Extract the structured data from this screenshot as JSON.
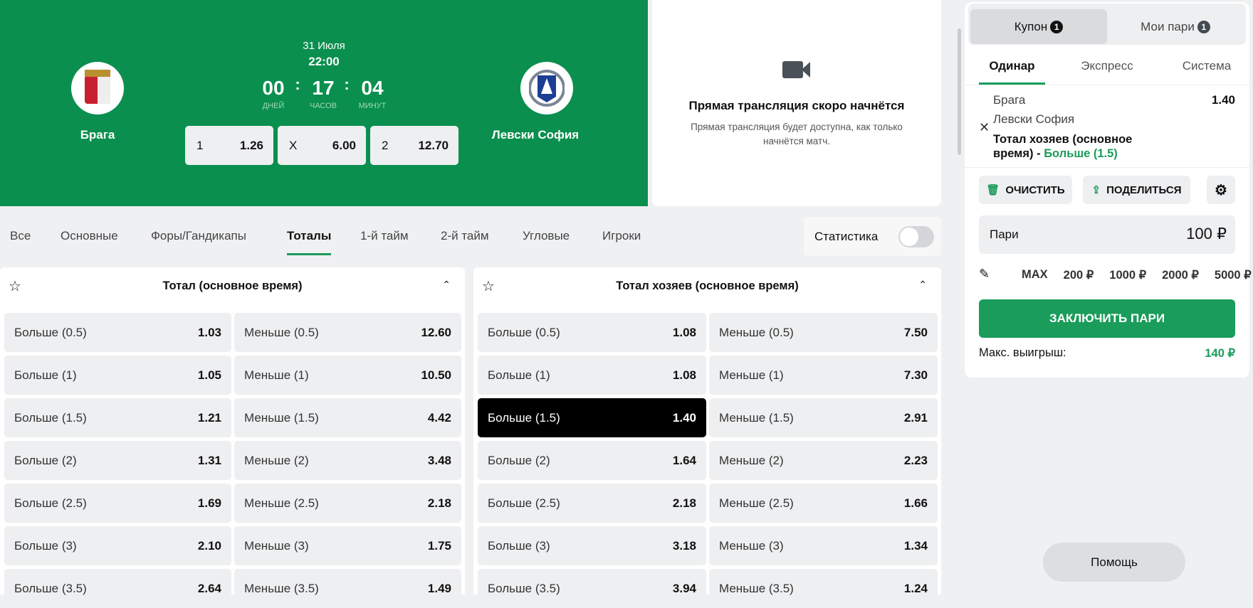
{
  "match": {
    "home": "Брага",
    "away": "Левски София",
    "date": "31 Июля",
    "time": "22:00",
    "countdown": {
      "days": "00",
      "hours": "17",
      "minutes": "04",
      "days_label": "ДНЕЙ",
      "hours_label": "ЧАСОВ",
      "minutes_label": "МИНУТ",
      "sep": ":"
    },
    "odds": [
      {
        "label": "1",
        "value": "1.26"
      },
      {
        "label": "X",
        "value": "6.00"
      },
      {
        "label": "2",
        "value": "12.70"
      }
    ]
  },
  "stream": {
    "title": "Прямая трансляция скоро начнётся",
    "subtitle": "Прямая трансляция будет доступна, как только начнётся матч.",
    "icon": "video-camera-icon"
  },
  "tabs": [
    "Все",
    "Основные",
    "Форы/Гандикапы",
    "Тоталы",
    "1-й тайм",
    "2-й тайм",
    "Угловые",
    "Игроки"
  ],
  "active_tab": "Тоталы",
  "statistics": {
    "label": "Статистика",
    "enabled": false
  },
  "markets": [
    {
      "title": "Тотал (основное время)",
      "rows": [
        [
          "Больше (0.5)",
          "1.03",
          "Меньше (0.5)",
          "12.60"
        ],
        [
          "Больше (1)",
          "1.05",
          "Меньше (1)",
          "10.50"
        ],
        [
          "Больше (1.5)",
          "1.21",
          "Меньше (1.5)",
          "4.42"
        ],
        [
          "Больше (2)",
          "1.31",
          "Меньше (2)",
          "3.48"
        ],
        [
          "Больше (2.5)",
          "1.69",
          "Меньше (2.5)",
          "2.18"
        ],
        [
          "Больше (3)",
          "2.10",
          "Меньше (3)",
          "1.75"
        ],
        [
          "Больше (3.5)",
          "2.64",
          "Меньше (3.5)",
          "1.49"
        ]
      ]
    },
    {
      "title": "Тотал хозяев (основное время)",
      "rows": [
        [
          "Больше (0.5)",
          "1.08",
          "Меньше (0.5)",
          "7.50"
        ],
        [
          "Больше (1)",
          "1.08",
          "Меньше (1)",
          "7.30"
        ],
        [
          "Больше (1.5)",
          "1.40",
          "Меньше (1.5)",
          "2.91"
        ],
        [
          "Больше (2)",
          "1.64",
          "Меньше (2)",
          "2.23"
        ],
        [
          "Больше (2.5)",
          "2.18",
          "Меньше (2.5)",
          "1.66"
        ],
        [
          "Больше (3)",
          "3.18",
          "Меньше (3)",
          "1.34"
        ],
        [
          "Больше (3.5)",
          "3.94",
          "Меньше (3.5)",
          "1.24"
        ]
      ]
    }
  ],
  "betslip": {
    "tab_coupon": "Купон",
    "coupon_count": "1",
    "tab_mybets": "Мои пари",
    "mybets_count": "1",
    "types": [
      "Одинар",
      "Экспресс",
      "Система"
    ],
    "selection": {
      "home": "Брага",
      "away": "Левски София",
      "market": "Тотал хозяев (основное время) - ",
      "outcome": "Больше (1.5)",
      "odds": "1.40"
    },
    "clear": "ОЧИСТИТЬ",
    "share": "ПОДЕЛИТЬСЯ",
    "stake_label": "Пари",
    "stake": "100 ₽",
    "quick": [
      "MAX",
      "200 ₽",
      "1000 ₽",
      "2000 ₽",
      "5000 ₽"
    ],
    "place": "ЗАКЛЮЧИТЬ ПАРИ",
    "maxwin_label": "Макс. выигрыш:",
    "maxwin": "140 ₽"
  },
  "help": "Помощь",
  "colors": {
    "brand": "#0a8f4e",
    "accent": "#1a9c5a",
    "selected": "#000000"
  }
}
